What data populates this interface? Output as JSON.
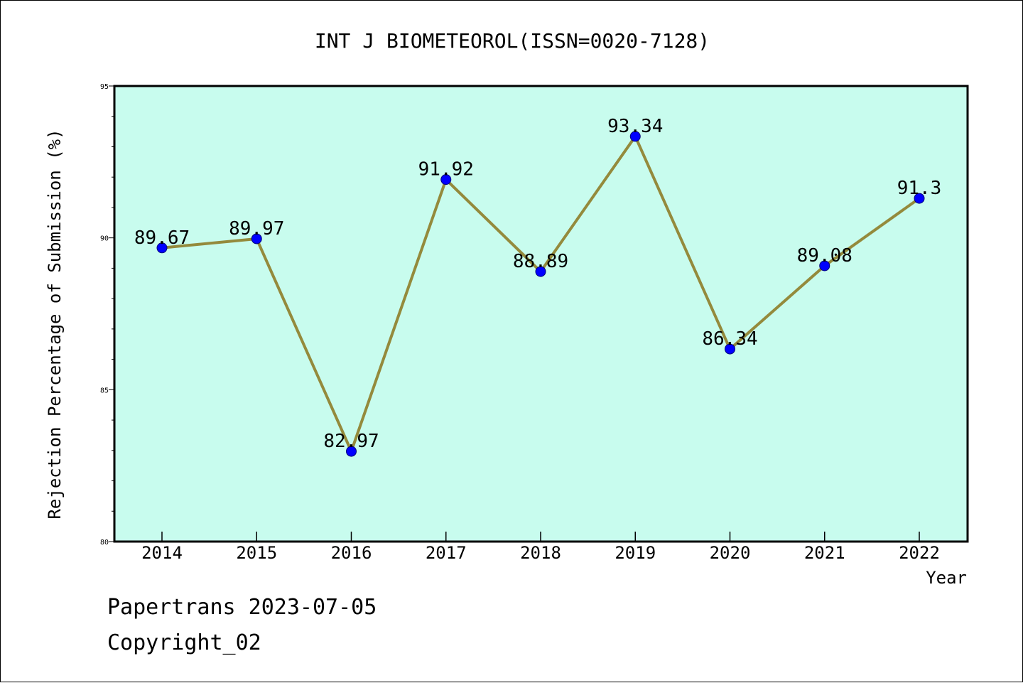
{
  "chart_data": {
    "type": "line",
    "title": "INT J BIOMETEOROL(ISSN=0020-7128)",
    "xlabel": "Year",
    "ylabel": "Rejection Percentage of Submission (%)",
    "categories": [
      "2014",
      "2015",
      "2016",
      "2017",
      "2018",
      "2019",
      "2020",
      "2021",
      "2022"
    ],
    "series": [
      {
        "values": [
          89.67,
          89.97,
          82.97,
          91.92,
          88.89,
          93.34,
          86.34,
          89.08,
          91.3
        ],
        "labels": [
          "89.67",
          "89.97",
          "82.97",
          "91.92",
          "88.89",
          "93.34",
          "86.34",
          "89.08",
          "91.3"
        ]
      }
    ],
    "ylim": [
      80,
      95
    ],
    "y_major_ticks": [
      "80",
      "85",
      "90",
      "95"
    ],
    "y_minor_step": 1,
    "grid": false,
    "legend": "none",
    "colors": {
      "plot_background": "#c8fcee",
      "line": "#948a3c",
      "marker": "#0000ff",
      "marker_edge": "#00007a",
      "frame": "#000000"
    }
  },
  "footer": {
    "line1": "Papertrans 2023-07-05",
    "line2": "Copyright_02"
  }
}
